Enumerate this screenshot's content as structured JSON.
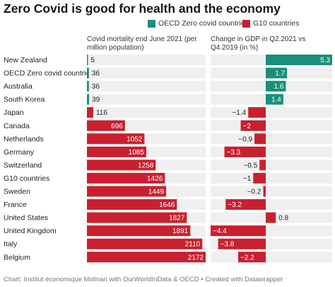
{
  "title": "Zero Covid is good for health and the economy",
  "legend": [
    {
      "label": "OECD Zero covid countries",
      "color": "#1a8f7a"
    },
    {
      "label": "G10 countries",
      "color": "#c8202f"
    }
  ],
  "footer": "Chart: Institut économique Molinari with OurWorldInData & OECD • Created with Datawrapper",
  "chart_data": {
    "type": "bar",
    "orientation": "horizontal",
    "categories": [
      "New Zealand",
      "OECD Zero covid countries",
      "Australia",
      "South Korea",
      "Japan",
      "Canada",
      "Netherlands",
      "Germany",
      "Switzerland",
      "G10 countries",
      "Sweden",
      "France",
      "United States",
      "United Kingdom",
      "Italy",
      "Belgium"
    ],
    "groups": [
      "OECD Zero covid countries",
      "OECD Zero covid countries",
      "OECD Zero covid countries",
      "OECD Zero covid countries",
      "G10 countries",
      "G10 countries",
      "G10 countries",
      "G10 countries",
      "G10 countries",
      "G10 countries",
      "G10 countries",
      "G10 countries",
      "G10 countries",
      "G10 countries",
      "G10 countries",
      "G10 countries"
    ],
    "series": [
      {
        "name": "Covid mortality end June 2021 (per million population)",
        "values": [
          5,
          36,
          36,
          39,
          116,
          696,
          1052,
          1085,
          1258,
          1426,
          1449,
          1646,
          1827,
          1891,
          2110,
          2172
        ],
        "labels": [
          "5",
          "36",
          "36",
          "39",
          "116",
          "696",
          "1052",
          "1085",
          "1258",
          "1426",
          "1449",
          "1646",
          "1827",
          "1891",
          "2110",
          "2172"
        ],
        "xlim": [
          0,
          2172
        ]
      },
      {
        "name": "Change in GDP in Q2.2021 vs Q4.2019 (in %)",
        "values": [
          5.3,
          1.7,
          1.6,
          1.4,
          -1.4,
          -2.0,
          -0.9,
          -3.3,
          -0.5,
          -1.0,
          -0.2,
          -3.2,
          0.8,
          -4.4,
          -3.8,
          -2.2
        ],
        "labels": [
          "5.3",
          "1.7",
          "1.6",
          "1.4",
          "−1.4",
          "−2",
          "−0.9",
          "−3.3",
          "−0.5",
          "−1",
          "−0.2",
          "−3.2",
          "0.8",
          "−4.4",
          "−3.8",
          "−2.2"
        ],
        "xlim": [
          -4.4,
          5.3
        ]
      }
    ],
    "colors": {
      "OECD Zero covid countries": "#1a8f7a",
      "G10 countries": "#c8202f",
      "background": "#efefef"
    }
  }
}
